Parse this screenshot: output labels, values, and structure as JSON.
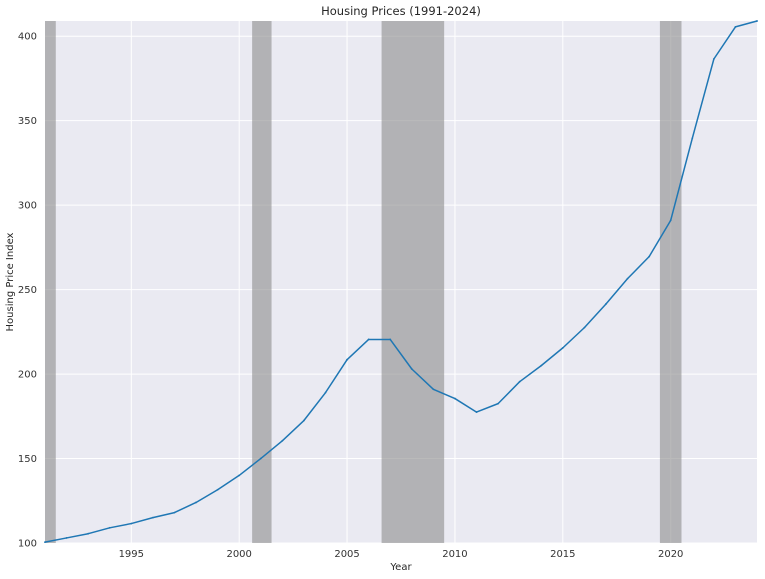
{
  "chart_data": {
    "type": "line",
    "title": "Housing Prices (1991-2024)",
    "xlabel": "Year",
    "ylabel": "Housing Price Index",
    "xlim": [
      1991,
      2024
    ],
    "ylim": [
      100,
      409
    ],
    "xticks": [
      1995,
      2000,
      2005,
      2010,
      2015,
      2020
    ],
    "yticks": [
      100,
      150,
      200,
      250,
      300,
      350,
      400
    ],
    "grid": true,
    "legend": "none",
    "colors": {
      "line": "#1f77b4",
      "plot_background": "#eaeaf2",
      "grid": "#ffffff",
      "recession_shading": "#8c8c8c"
    },
    "shaded_periods": [
      {
        "start": 1991.0,
        "end": 1991.5
      },
      {
        "start": 2000.6,
        "end": 2001.5
      },
      {
        "start": 2006.6,
        "end": 2009.5
      },
      {
        "start": 2019.5,
        "end": 2020.5
      }
    ],
    "series": [
      {
        "x": [
          1991,
          1992,
          1993,
          1994,
          1995,
          1996,
          1997,
          1998,
          1999,
          2000,
          2001,
          2002,
          2003,
          2004,
          2005,
          2006,
          2007,
          2008,
          2009,
          2010,
          2011,
          2012,
          2013,
          2014,
          2015,
          2016,
          2017,
          2018,
          2019,
          2020,
          2021,
          2022,
          2023,
          2024
        ],
        "values": [
          100.5,
          103,
          105.5,
          109,
          111.5,
          115,
          118,
          124,
          131.5,
          140,
          150,
          160.5,
          172.5,
          189,
          208.5,
          220.5,
          220.5,
          203,
          191,
          185.5,
          177.5,
          182.5,
          195.5,
          205,
          215.5,
          227.5,
          241.5,
          256.5,
          269.5,
          291,
          339.5,
          386.5,
          405.5,
          409
        ]
      }
    ]
  }
}
